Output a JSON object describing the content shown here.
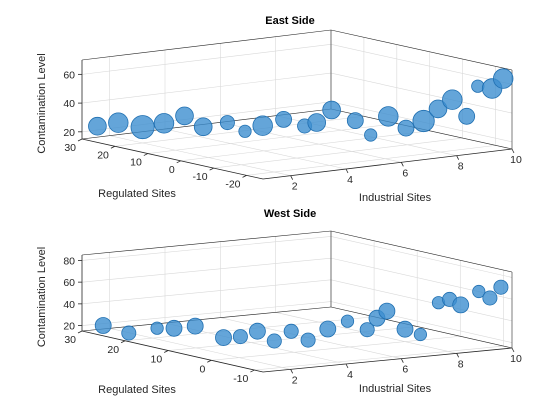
{
  "chart_data": [
    {
      "type": "scatter",
      "title": "East Side",
      "xlabel": "Industrial Sites",
      "ylabel": "Regulated Sites",
      "zlabel": "Contamination Level",
      "xlim": [
        1,
        10
      ],
      "ylim": [
        -25,
        30
      ],
      "zlim": [
        15,
        70
      ],
      "xticks": [
        2,
        4,
        6,
        8,
        10
      ],
      "yticks": [
        -20,
        -10,
        0,
        10,
        20,
        30
      ],
      "zticks": [
        20,
        40,
        60
      ],
      "color": "#3d8fd0",
      "grid": true,
      "points": [
        {
          "x": 1.2,
          "y": 27,
          "z": 25,
          "s": 0.6
        },
        {
          "x": 1.6,
          "y": 24,
          "z": 28,
          "s": 0.7
        },
        {
          "x": 2.0,
          "y": 20,
          "z": 26,
          "s": 0.9
        },
        {
          "x": 2.3,
          "y": 16,
          "z": 30,
          "s": 0.7
        },
        {
          "x": 2.8,
          "y": 14,
          "z": 35,
          "s": 0.6
        },
        {
          "x": 3.0,
          "y": 10,
          "z": 29,
          "s": 0.6
        },
        {
          "x": 3.4,
          "y": 6,
          "z": 33,
          "s": 0.4
        },
        {
          "x": 3.8,
          "y": 4,
          "z": 27,
          "s": 0.3
        },
        {
          "x": 4.2,
          "y": 2,
          "z": 31,
          "s": 0.7
        },
        {
          "x": 4.6,
          "y": -1,
          "z": 36,
          "s": 0.5
        },
        {
          "x": 5.0,
          "y": -4,
          "z": 32,
          "s": 0.4
        },
        {
          "x": 5.2,
          "y": -6,
          "z": 35,
          "s": 0.6
        },
        {
          "x": 5.5,
          "y": -8,
          "z": 44,
          "s": 0.6
        },
        {
          "x": 6.0,
          "y": -11,
          "z": 37,
          "s": 0.5
        },
        {
          "x": 6.2,
          "y": -14,
          "z": 28,
          "s": 0.3
        },
        {
          "x": 6.6,
          "y": -16,
          "z": 41,
          "s": 0.7
        },
        {
          "x": 7.0,
          "y": -18,
          "z": 33,
          "s": 0.5
        },
        {
          "x": 7.4,
          "y": -20,
          "z": 38,
          "s": 0.8
        },
        {
          "x": 7.8,
          "y": -21,
          "z": 46,
          "s": 0.6
        },
        {
          "x": 8.2,
          "y": -22,
          "z": 52,
          "s": 0.7
        },
        {
          "x": 8.6,
          "y": -23,
          "z": 40,
          "s": 0.5
        },
        {
          "x": 9.0,
          "y": -23,
          "z": 60,
          "s": 0.3
        },
        {
          "x": 9.4,
          "y": -24,
          "z": 58,
          "s": 0.7
        },
        {
          "x": 9.8,
          "y": -24,
          "z": 64,
          "s": 0.7
        }
      ]
    },
    {
      "type": "scatter",
      "title": "West Side",
      "xlabel": "Industrial Sites",
      "ylabel": "Regulated Sites",
      "zlabel": "Contamination Level",
      "xlim": [
        1,
        10
      ],
      "ylim": [
        -12,
        30
      ],
      "zlim": [
        15,
        85
      ],
      "xticks": [
        2,
        4,
        6,
        8,
        10
      ],
      "yticks": [
        -10,
        0,
        10,
        20,
        30
      ],
      "zticks": [
        20,
        40,
        60,
        80
      ],
      "color": "#3d8fd0",
      "grid": true,
      "points": [
        {
          "x": 1.3,
          "y": 27,
          "z": 22,
          "s": 0.5
        },
        {
          "x": 1.6,
          "y": 23,
          "z": 18,
          "s": 0.4
        },
        {
          "x": 2.0,
          "y": 19,
          "z": 25,
          "s": 0.3
        },
        {
          "x": 2.3,
          "y": 17,
          "z": 26,
          "s": 0.5
        },
        {
          "x": 2.6,
          "y": 14,
          "z": 30,
          "s": 0.5
        },
        {
          "x": 3.0,
          "y": 10,
          "z": 22,
          "s": 0.5
        },
        {
          "x": 3.3,
          "y": 8,
          "z": 24,
          "s": 0.4
        },
        {
          "x": 3.6,
          "y": 6,
          "z": 30,
          "s": 0.5
        },
        {
          "x": 3.9,
          "y": 4,
          "z": 22,
          "s": 0.4
        },
        {
          "x": 4.2,
          "y": 2,
          "z": 32,
          "s": 0.4
        },
        {
          "x": 4.5,
          "y": 0,
          "z": 25,
          "s": 0.4
        },
        {
          "x": 4.9,
          "y": -2,
          "z": 36,
          "s": 0.5
        },
        {
          "x": 5.3,
          "y": -4,
          "z": 44,
          "s": 0.3
        },
        {
          "x": 5.7,
          "y": -6,
          "z": 37,
          "s": 0.4
        },
        {
          "x": 5.9,
          "y": -7,
          "z": 48,
          "s": 0.5
        },
        {
          "x": 6.1,
          "y": -8,
          "z": 55,
          "s": 0.5
        },
        {
          "x": 6.6,
          "y": -9,
          "z": 38,
          "s": 0.5
        },
        {
          "x": 7.0,
          "y": -10,
          "z": 33,
          "s": 0.3
        },
        {
          "x": 7.5,
          "y": -11,
          "z": 62,
          "s": 0.3
        },
        {
          "x": 7.9,
          "y": -11,
          "z": 64,
          "s": 0.4
        },
        {
          "x": 8.3,
          "y": -11,
          "z": 58,
          "s": 0.5
        },
        {
          "x": 8.8,
          "y": -12,
          "z": 70,
          "s": 0.3
        },
        {
          "x": 9.2,
          "y": -12,
          "z": 63,
          "s": 0.4
        },
        {
          "x": 9.6,
          "y": -12,
          "z": 72,
          "s": 0.4
        }
      ]
    }
  ]
}
